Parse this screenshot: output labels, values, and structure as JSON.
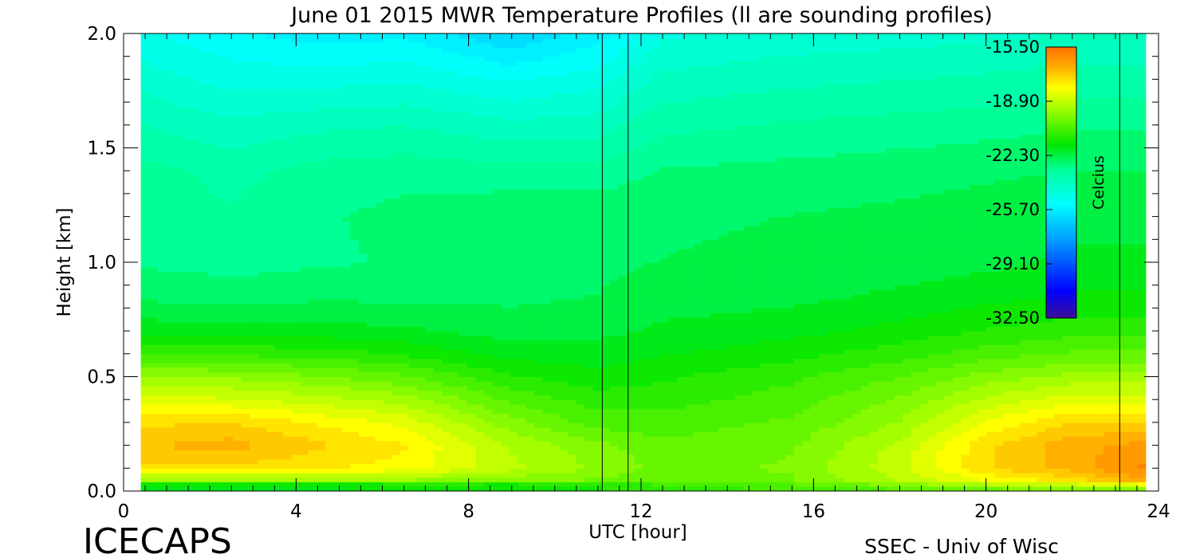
{
  "chart_data": {
    "type": "heatmap",
    "title": "June 01 2015 MWR Temperature Profiles (ll are sounding profiles)",
    "xlabel": "UTC [hour]",
    "ylabel": "Height [km]",
    "xlim": [
      0,
      24
    ],
    "ylim": [
      0.0,
      2.0
    ],
    "x_ticks": [
      "0",
      "4",
      "8",
      "12",
      "16",
      "20",
      "24"
    ],
    "y_ticks": [
      "0.0",
      "0.5",
      "1.0",
      "1.5",
      "2.0"
    ],
    "x_tick_values": [
      0,
      4,
      8,
      12,
      16,
      20,
      24
    ],
    "y_tick_values": [
      0.0,
      0.5,
      1.0,
      1.5,
      2.0
    ],
    "data_x_range": [
      0.4,
      23.7
    ],
    "sounding_times": [
      11.1,
      11.7,
      23.1
    ],
    "colorbar": {
      "label": "Celcius",
      "min": -32.5,
      "max": -15.5,
      "tick_labels": [
        "-15.50",
        "-18.90",
        "-22.30",
        "-25.70",
        "-29.10",
        "-32.50"
      ],
      "tick_values": [
        -15.5,
        -18.9,
        -22.3,
        -25.7,
        -29.1,
        -32.5
      ]
    },
    "heights_km": [
      0.0,
      0.02,
      0.05,
      0.1,
      0.2,
      0.3,
      0.4,
      0.5,
      0.6,
      0.7,
      0.85,
      1.0,
      1.2,
      1.4,
      1.6,
      1.8,
      2.0
    ],
    "series": [
      {
        "x": 0.4,
        "values": [
          -21.0,
          -22.5,
          -19.5,
          -17.5,
          -17.0,
          -17.5,
          -18.5,
          -19.5,
          -20.8,
          -21.8,
          -22.6,
          -23.0,
          -23.2,
          -23.2,
          -23.8,
          -24.4,
          -25.0
        ]
      },
      {
        "x": 2.5,
        "values": [
          -21.0,
          -22.5,
          -19.5,
          -17.5,
          -16.8,
          -17.4,
          -18.6,
          -19.6,
          -20.9,
          -21.9,
          -22.7,
          -23.1,
          -23.3,
          -23.5,
          -24.1,
          -24.8,
          -25.4
        ]
      },
      {
        "x": 4.5,
        "values": [
          -21.0,
          -22.5,
          -19.5,
          -17.8,
          -17.3,
          -17.9,
          -18.9,
          -19.9,
          -21.0,
          -21.9,
          -22.6,
          -23.0,
          -23.0,
          -23.2,
          -23.9,
          -24.8,
          -25.7
        ]
      },
      {
        "x": 6.5,
        "values": [
          -21.0,
          -22.0,
          -19.5,
          -18.0,
          -17.8,
          -18.4,
          -19.3,
          -20.3,
          -21.3,
          -22.0,
          -22.6,
          -22.9,
          -22.8,
          -23.1,
          -23.8,
          -24.7,
          -25.6
        ]
      },
      {
        "x": 9.0,
        "values": [
          -21.0,
          -22.0,
          -19.8,
          -19.0,
          -19.2,
          -19.8,
          -20.5,
          -21.2,
          -21.8,
          -22.3,
          -22.6,
          -22.7,
          -22.6,
          -23.2,
          -24.1,
          -25.1,
          -26.3
        ]
      },
      {
        "x": 11.0,
        "values": [
          -21.0,
          -21.5,
          -20.0,
          -19.6,
          -19.8,
          -20.6,
          -21.0,
          -21.5,
          -21.9,
          -22.2,
          -22.5,
          -22.6,
          -22.6,
          -23.2,
          -24.0,
          -24.8,
          -25.7
        ]
      },
      {
        "x": 12.5,
        "values": [
          -21.0,
          -21.0,
          -20.3,
          -20.1,
          -20.3,
          -20.6,
          -21.0,
          -21.3,
          -21.7,
          -22.0,
          -22.3,
          -22.5,
          -22.6,
          -22.9,
          -23.5,
          -24.1,
          -24.7
        ]
      },
      {
        "x": 15.5,
        "values": [
          -20.8,
          -20.6,
          -20.0,
          -19.9,
          -20.0,
          -20.3,
          -20.6,
          -20.9,
          -21.4,
          -21.8,
          -22.2,
          -22.4,
          -22.5,
          -22.8,
          -23.3,
          -23.9,
          -24.5
        ]
      },
      {
        "x": 18.0,
        "values": [
          -20.6,
          -20.1,
          -19.1,
          -18.8,
          -19.0,
          -19.5,
          -19.9,
          -20.4,
          -21.0,
          -21.5,
          -22.0,
          -22.3,
          -22.4,
          -22.7,
          -23.2,
          -23.8,
          -24.4
        ]
      },
      {
        "x": 20.0,
        "values": [
          -20.4,
          -19.6,
          -18.2,
          -17.5,
          -17.5,
          -18.2,
          -19.0,
          -19.8,
          -20.6,
          -21.2,
          -21.8,
          -22.2,
          -22.3,
          -22.6,
          -23.1,
          -23.7,
          -24.3
        ]
      },
      {
        "x": 22.0,
        "values": [
          -20.3,
          -19.3,
          -17.6,
          -16.8,
          -16.7,
          -17.4,
          -18.4,
          -19.4,
          -20.3,
          -21.0,
          -21.6,
          -22.0,
          -22.2,
          -22.5,
          -23.0,
          -23.6,
          -24.2
        ]
      },
      {
        "x": 23.7,
        "values": [
          -20.2,
          -19.0,
          -16.6,
          -16.0,
          -16.4,
          -17.4,
          -18.4,
          -19.4,
          -20.3,
          -21.0,
          -21.6,
          -22.0,
          -22.2,
          -22.5,
          -23.0,
          -23.6,
          -24.2
        ]
      }
    ]
  },
  "footer": {
    "left_label": "ICECAPS",
    "right_label": "SSEC - Univ of Wisc"
  }
}
